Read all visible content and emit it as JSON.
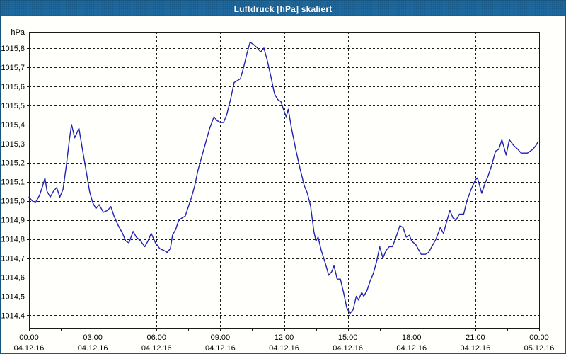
{
  "window": {
    "title": "Luftdruck [hPa] skaliert",
    "colors": {
      "titlebar_bg": "#1F6DA4",
      "titlebar_text": "#FFFFFF",
      "window_border": "#19567F",
      "content_bg": "#FFFFFC",
      "plot_border": "#1A1A1A",
      "grid": "#1A1A1A",
      "label": "#000000",
      "line": "#2222B2"
    }
  },
  "chart_data": {
    "type": "line",
    "title": "Luftdruck [hPa] skaliert",
    "ylabel": "hPa",
    "y_unit_label": "hPa",
    "grid": "dashed",
    "legend_position": "none",
    "xlim_hours": [
      0,
      24
    ],
    "ylim": [
      1014.335,
      1015.885
    ],
    "x_minor_tick_step_hours": 1.5,
    "x_ticks": [
      {
        "hour": 0,
        "time": "00:00",
        "date": "04.12.16"
      },
      {
        "hour": 3,
        "time": "03:00",
        "date": "04.12.16"
      },
      {
        "hour": 6,
        "time": "06:00",
        "date": "04.12.16"
      },
      {
        "hour": 9,
        "time": "09:00",
        "date": "04.12.16"
      },
      {
        "hour": 12,
        "time": "12:00",
        "date": "04.12.16"
      },
      {
        "hour": 15,
        "time": "15:00",
        "date": "04.12.16"
      },
      {
        "hour": 18,
        "time": "18:00",
        "date": "04.12.16"
      },
      {
        "hour": 21,
        "time": "21:00",
        "date": "04.12.16"
      },
      {
        "hour": 24,
        "time": "00:00",
        "date": "05.12.16"
      }
    ],
    "y_ticks": [
      {
        "value": 1014.4,
        "label": "1014,4"
      },
      {
        "value": 1014.5,
        "label": "1014,5"
      },
      {
        "value": 1014.6,
        "label": "1014,6"
      },
      {
        "value": 1014.7,
        "label": "1014,7"
      },
      {
        "value": 1014.8,
        "label": "1014,8"
      },
      {
        "value": 1014.9,
        "label": "1014,9"
      },
      {
        "value": 1015.0,
        "label": "1015,0"
      },
      {
        "value": 1015.1,
        "label": "1015,1"
      },
      {
        "value": 1015.2,
        "label": "1015,2"
      },
      {
        "value": 1015.3,
        "label": "1015,3"
      },
      {
        "value": 1015.4,
        "label": "1015,4"
      },
      {
        "value": 1015.5,
        "label": "1015,5"
      },
      {
        "value": 1015.6,
        "label": "1015,6"
      },
      {
        "value": 1015.7,
        "label": "1015,7"
      },
      {
        "value": 1015.8,
        "label": "1015,8"
      }
    ],
    "series": [
      {
        "name": "Luftdruck",
        "color": "#2222B2",
        "points": [
          [
            0.0,
            1015.02
          ],
          [
            0.15,
            1015.0
          ],
          [
            0.3,
            1014.99
          ],
          [
            0.5,
            1015.03
          ],
          [
            0.65,
            1015.08
          ],
          [
            0.75,
            1015.12
          ],
          [
            0.85,
            1015.05
          ],
          [
            1.0,
            1015.02
          ],
          [
            1.15,
            1015.05
          ],
          [
            1.3,
            1015.07
          ],
          [
            1.45,
            1015.02
          ],
          [
            1.6,
            1015.06
          ],
          [
            1.75,
            1015.18
          ],
          [
            1.9,
            1015.32
          ],
          [
            2.0,
            1015.4
          ],
          [
            2.15,
            1015.33
          ],
          [
            2.35,
            1015.38
          ],
          [
            2.5,
            1015.28
          ],
          [
            2.7,
            1015.15
          ],
          [
            2.85,
            1015.05
          ],
          [
            3.0,
            1014.99
          ],
          [
            3.15,
            1014.96
          ],
          [
            3.3,
            1014.98
          ],
          [
            3.5,
            1014.94
          ],
          [
            3.7,
            1014.95
          ],
          [
            3.85,
            1014.97
          ],
          [
            4.0,
            1014.92
          ],
          [
            4.2,
            1014.87
          ],
          [
            4.4,
            1014.83
          ],
          [
            4.55,
            1014.79
          ],
          [
            4.7,
            1014.78
          ],
          [
            4.9,
            1014.84
          ],
          [
            5.05,
            1014.81
          ],
          [
            5.25,
            1014.79
          ],
          [
            5.45,
            1014.76
          ],
          [
            5.6,
            1014.79
          ],
          [
            5.75,
            1014.83
          ],
          [
            5.95,
            1014.78
          ],
          [
            6.15,
            1014.75
          ],
          [
            6.35,
            1014.74
          ],
          [
            6.5,
            1014.73
          ],
          [
            6.65,
            1014.75
          ],
          [
            6.75,
            1014.82
          ],
          [
            6.9,
            1014.85
          ],
          [
            7.05,
            1014.9
          ],
          [
            7.2,
            1014.91
          ],
          [
            7.35,
            1014.92
          ],
          [
            7.5,
            1014.97
          ],
          [
            7.65,
            1015.02
          ],
          [
            7.8,
            1015.08
          ],
          [
            7.95,
            1015.16
          ],
          [
            8.1,
            1015.22
          ],
          [
            8.3,
            1015.3
          ],
          [
            8.5,
            1015.38
          ],
          [
            8.7,
            1015.44
          ],
          [
            8.85,
            1015.42
          ],
          [
            9.0,
            1015.41
          ],
          [
            9.15,
            1015.41
          ],
          [
            9.3,
            1015.45
          ],
          [
            9.5,
            1015.54
          ],
          [
            9.65,
            1015.62
          ],
          [
            9.8,
            1015.63
          ],
          [
            9.95,
            1015.64
          ],
          [
            10.1,
            1015.7
          ],
          [
            10.25,
            1015.77
          ],
          [
            10.4,
            1015.83
          ],
          [
            10.55,
            1015.82
          ],
          [
            10.75,
            1015.8
          ],
          [
            10.9,
            1015.78
          ],
          [
            11.05,
            1015.8
          ],
          [
            11.2,
            1015.74
          ],
          [
            11.4,
            1015.64
          ],
          [
            11.55,
            1015.56
          ],
          [
            11.7,
            1015.53
          ],
          [
            11.85,
            1015.52
          ],
          [
            12.0,
            1015.47
          ],
          [
            12.1,
            1015.44
          ],
          [
            12.2,
            1015.48
          ],
          [
            12.35,
            1015.38
          ],
          [
            12.55,
            1015.27
          ],
          [
            12.75,
            1015.17
          ],
          [
            12.95,
            1015.08
          ],
          [
            13.1,
            1015.04
          ],
          [
            13.25,
            1014.97
          ],
          [
            13.4,
            1014.84
          ],
          [
            13.5,
            1014.79
          ],
          [
            13.6,
            1014.81
          ],
          [
            13.75,
            1014.74
          ],
          [
            13.95,
            1014.67
          ],
          [
            14.1,
            1014.61
          ],
          [
            14.25,
            1014.63
          ],
          [
            14.35,
            1014.66
          ],
          [
            14.5,
            1014.59
          ],
          [
            14.65,
            1014.59
          ],
          [
            14.8,
            1014.52
          ],
          [
            14.95,
            1014.44
          ],
          [
            15.1,
            1014.41
          ],
          [
            15.25,
            1014.43
          ],
          [
            15.4,
            1014.5
          ],
          [
            15.5,
            1014.48
          ],
          [
            15.65,
            1014.52
          ],
          [
            15.75,
            1014.5
          ],
          [
            15.9,
            1014.53
          ],
          [
            16.05,
            1014.58
          ],
          [
            16.2,
            1014.62
          ],
          [
            16.35,
            1014.68
          ],
          [
            16.5,
            1014.76
          ],
          [
            16.65,
            1014.7
          ],
          [
            16.8,
            1014.74
          ],
          [
            16.95,
            1014.76
          ],
          [
            17.1,
            1014.76
          ],
          [
            17.3,
            1014.82
          ],
          [
            17.45,
            1014.87
          ],
          [
            17.6,
            1014.86
          ],
          [
            17.75,
            1014.81
          ],
          [
            17.9,
            1014.82
          ],
          [
            18.0,
            1014.79
          ],
          [
            18.2,
            1014.77
          ],
          [
            18.45,
            1014.72
          ],
          [
            18.65,
            1014.72
          ],
          [
            18.8,
            1014.73
          ],
          [
            19.0,
            1014.77
          ],
          [
            19.15,
            1014.8
          ],
          [
            19.35,
            1014.86
          ],
          [
            19.5,
            1014.83
          ],
          [
            19.65,
            1014.89
          ],
          [
            19.8,
            1014.95
          ],
          [
            19.95,
            1014.91
          ],
          [
            20.1,
            1014.9
          ],
          [
            20.25,
            1014.93
          ],
          [
            20.45,
            1014.93
          ],
          [
            20.6,
            1015.0
          ],
          [
            20.8,
            1015.06
          ],
          [
            21.0,
            1015.11
          ],
          [
            21.1,
            1015.12
          ],
          [
            21.3,
            1015.04
          ],
          [
            21.45,
            1015.09
          ],
          [
            21.6,
            1015.13
          ],
          [
            21.75,
            1015.18
          ],
          [
            21.95,
            1015.26
          ],
          [
            22.1,
            1015.27
          ],
          [
            22.25,
            1015.32
          ],
          [
            22.45,
            1015.24
          ],
          [
            22.6,
            1015.32
          ],
          [
            22.8,
            1015.29
          ],
          [
            23.0,
            1015.27
          ],
          [
            23.15,
            1015.25
          ],
          [
            23.45,
            1015.25
          ],
          [
            23.7,
            1015.27
          ],
          [
            23.85,
            1015.29
          ],
          [
            23.95,
            1015.31
          ]
        ]
      }
    ]
  }
}
